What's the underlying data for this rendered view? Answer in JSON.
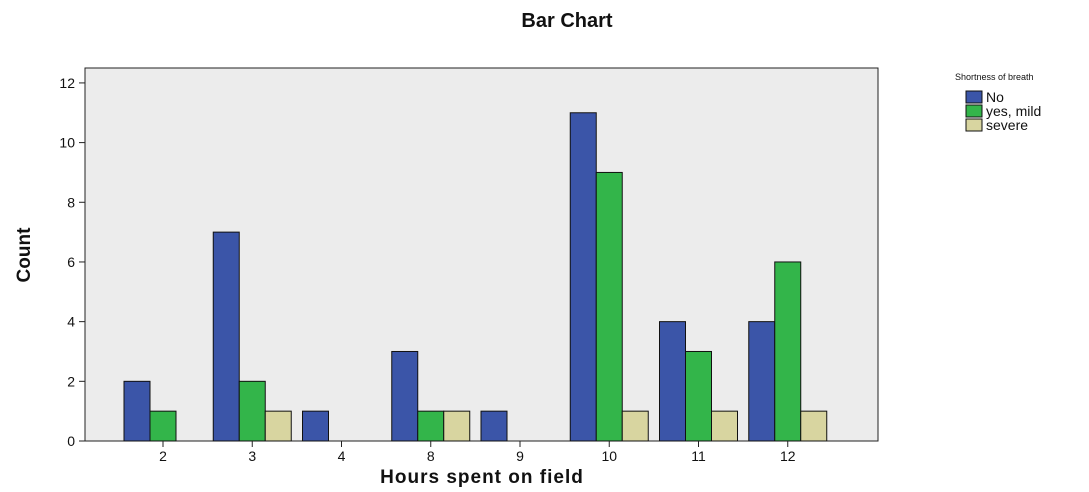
{
  "chart_data": {
    "type": "bar",
    "title": "Bar Chart",
    "xlabel": "Hours spent on field",
    "ylabel": "Count",
    "categories": [
      "2",
      "3",
      "4",
      "8",
      "9",
      "10",
      "11",
      "12"
    ],
    "series": [
      {
        "name": "No",
        "color": "#3b55a8",
        "values": [
          2,
          7,
          1,
          3,
          1,
          11,
          4,
          4
        ]
      },
      {
        "name": "yes, mild",
        "color": "#33b54a",
        "values": [
          1,
          2,
          0,
          1,
          0,
          9,
          3,
          6
        ]
      },
      {
        "name": "severe",
        "color": "#d8d5a0",
        "values": [
          0,
          1,
          0,
          1,
          0,
          1,
          1,
          1
        ]
      }
    ],
    "ylim": [
      0,
      12.5
    ],
    "yticks": [
      0,
      2,
      4,
      6,
      8,
      10,
      12
    ],
    "legend": {
      "title": "Shortness of breath",
      "position": "top-right"
    },
    "plot_background": "#ececec",
    "grid": false
  }
}
